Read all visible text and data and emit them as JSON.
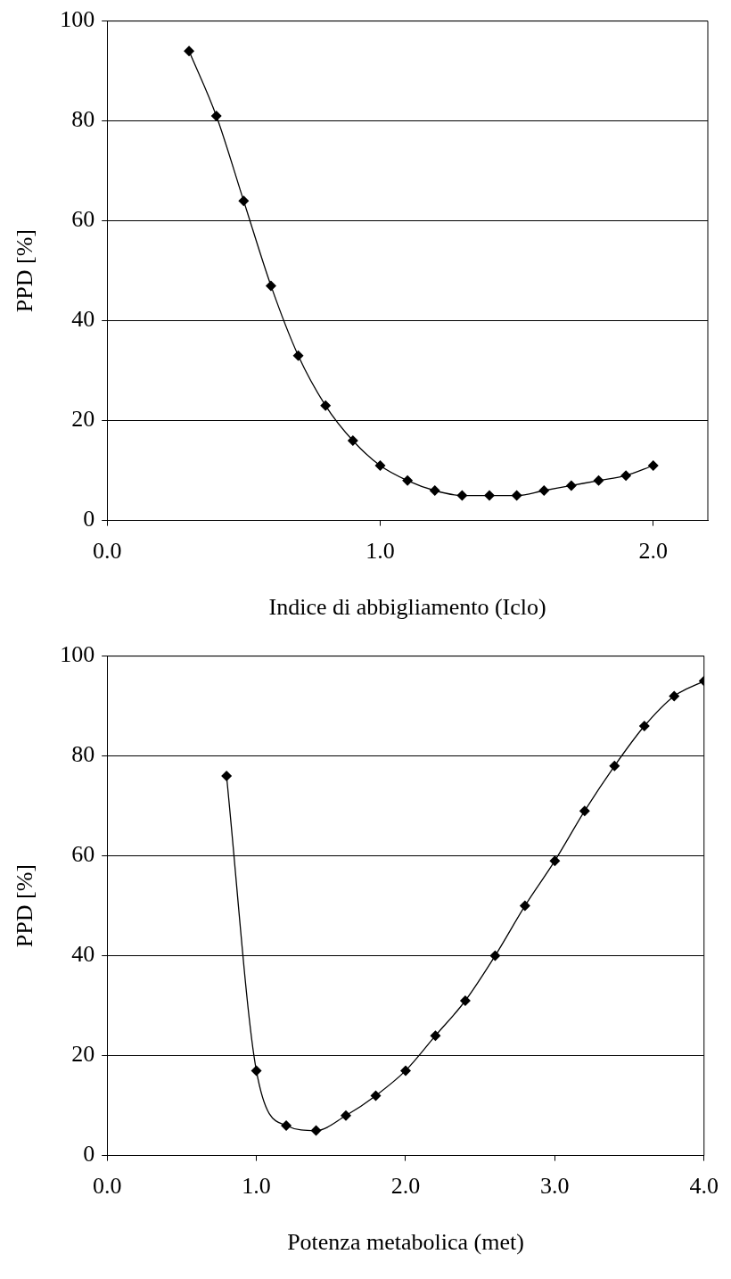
{
  "chart_data": [
    {
      "type": "line",
      "xlabel": "Indice di abbigliamento (Iclo)",
      "ylabel": "PPD [%]",
      "color": "#000000",
      "marker": "diamond",
      "grid": "y",
      "x": [
        0.3,
        0.4,
        0.5,
        0.6,
        0.7,
        0.8,
        0.9,
        1.0,
        1.1,
        1.2,
        1.3,
        1.4,
        1.5,
        1.6,
        1.7,
        1.8,
        1.9,
        2.0
      ],
      "values": [
        94,
        81,
        64,
        47,
        33,
        23,
        16,
        11,
        8,
        6,
        5,
        5,
        5,
        6,
        7,
        8,
        9,
        11
      ],
      "xlim": [
        0,
        2.2
      ],
      "xticks": [
        {
          "value": 0,
          "label": "0.0"
        },
        {
          "value": 1,
          "label": "1.0"
        },
        {
          "value": 2,
          "label": "2.0"
        }
      ],
      "ylim": [
        0,
        100
      ],
      "yticks": [
        0,
        20,
        40,
        60,
        80,
        100
      ]
    },
    {
      "type": "line",
      "xlabel": "Potenza metabolica (met)",
      "ylabel": "PPD [%]",
      "color": "#000000",
      "marker": "diamond",
      "grid": "y",
      "x": [
        0.8,
        1.0,
        1.2,
        1.4,
        1.6,
        1.8,
        2.0,
        2.2,
        2.4,
        2.6,
        2.8,
        3.0,
        3.2,
        3.4,
        3.6,
        3.8,
        4.0
      ],
      "values": [
        76,
        17,
        6,
        5,
        8,
        12,
        17,
        24,
        31,
        40,
        50,
        59,
        69,
        78,
        86,
        92,
        95
      ],
      "xlim": [
        0,
        4
      ],
      "xticks": [
        {
          "value": 0,
          "label": "0.0"
        },
        {
          "value": 1,
          "label": "1.0"
        },
        {
          "value": 2,
          "label": "2.0"
        },
        {
          "value": 3,
          "label": "3.0"
        },
        {
          "value": 4,
          "label": "4.0"
        }
      ],
      "ylim": [
        0,
        100
      ],
      "yticks": [
        0,
        20,
        40,
        60,
        80,
        100
      ]
    }
  ]
}
